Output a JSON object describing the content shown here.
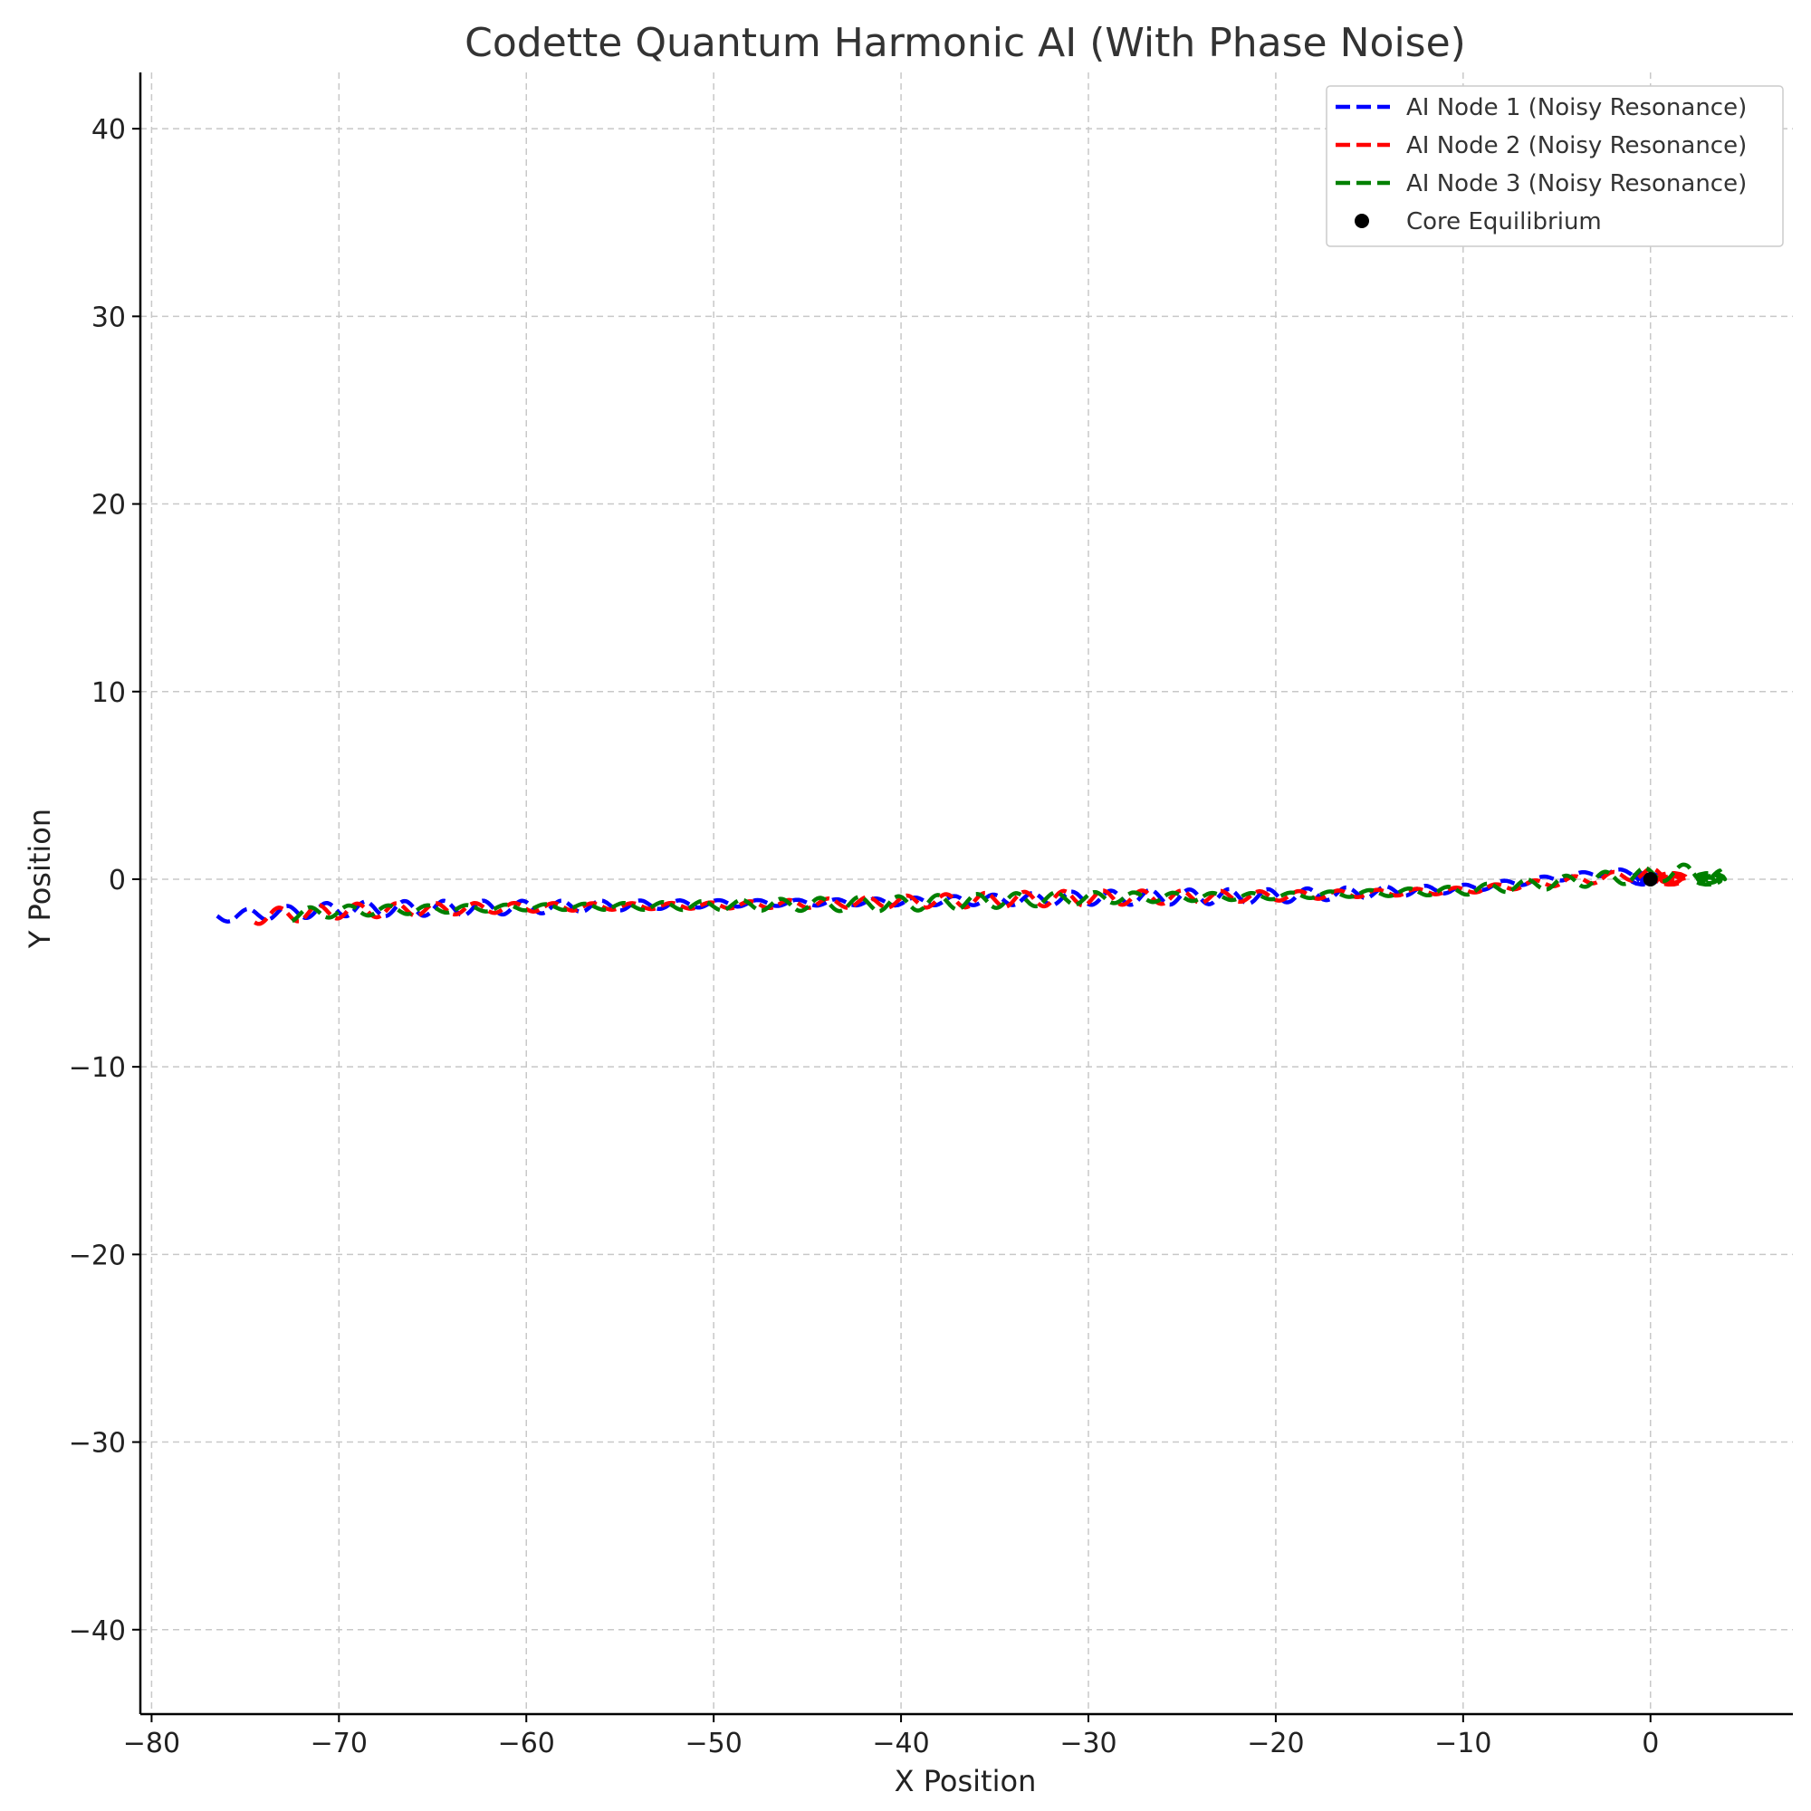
{
  "chart_data": {
    "type": "line",
    "title": "Codette Quantum Harmonic AI (With Phase Noise)",
    "xlabel": "X Position",
    "ylabel": "Y Position",
    "xlim": [
      -80.6,
      7.6
    ],
    "ylim": [
      -44.5,
      43.0
    ],
    "xticks": [
      -80,
      -70,
      -60,
      -50,
      -40,
      -30,
      -20,
      -10,
      0
    ],
    "xtick_labels": [
      "−80",
      "−70",
      "−60",
      "−50",
      "−40",
      "−30",
      "−20",
      "−10",
      "0"
    ],
    "yticks": [
      -40,
      -30,
      -20,
      -10,
      0,
      10,
      20,
      30,
      40
    ],
    "ytick_labels": [
      "−40",
      "−30",
      "−20",
      "−10",
      "0",
      "10",
      "20",
      "30",
      "40"
    ],
    "grid": true,
    "legend_position": "top-right",
    "series": [
      {
        "name": "AI Node 1 (Noisy Resonance)",
        "color": "#0000ff",
        "style": "dashed",
        "x_start": -76.5,
        "x_end": 0.3,
        "y_start": -2.0,
        "y_end": 0.0,
        "points_approx": [
          [
            -76.5,
            -2.0
          ],
          [
            -70,
            -1.6
          ],
          [
            -60,
            -1.5
          ],
          [
            -50,
            -1.3
          ],
          [
            -40,
            -1.2
          ],
          [
            -30,
            -1.0
          ],
          [
            -20,
            -0.9
          ],
          [
            -10,
            -0.5
          ],
          [
            -2.0,
            0.4
          ],
          [
            -0.5,
            0.2
          ],
          [
            0.3,
            0.0
          ]
        ]
      },
      {
        "name": "AI Node 2 (Noisy Resonance)",
        "color": "#ff0000",
        "style": "dashed",
        "x_start": -74.5,
        "x_end": 1.7,
        "y_start": -2.0,
        "y_end": 0.0,
        "points_approx": [
          [
            -74.5,
            -2.0
          ],
          [
            -70,
            -1.7
          ],
          [
            -60,
            -1.5
          ],
          [
            -50,
            -1.4
          ],
          [
            -40,
            -1.2
          ],
          [
            -30,
            -1.0
          ],
          [
            -20,
            -0.9
          ],
          [
            -10,
            -0.6
          ],
          [
            0.0,
            0.3
          ],
          [
            1.7,
            0.0
          ]
        ]
      },
      {
        "name": "AI Node 3 (Noisy Resonance)",
        "color": "#008000",
        "style": "dashed",
        "x_start": -72.5,
        "x_end": 3.7,
        "y_start": -1.9,
        "y_end": 0.1,
        "points_approx": [
          [
            -72.5,
            -1.9
          ],
          [
            -70,
            -1.7
          ],
          [
            -60,
            -1.5
          ],
          [
            -50,
            -1.4
          ],
          [
            -40,
            -1.3
          ],
          [
            -30,
            -1.0
          ],
          [
            -20,
            -0.9
          ],
          [
            -10,
            -0.6
          ],
          [
            2.0,
            0.4
          ],
          [
            3.7,
            0.1
          ]
        ]
      },
      {
        "name": "Core Equilibrium",
        "color": "#000000",
        "style": "marker",
        "points_approx": [
          [
            0,
            0
          ]
        ]
      }
    ]
  }
}
